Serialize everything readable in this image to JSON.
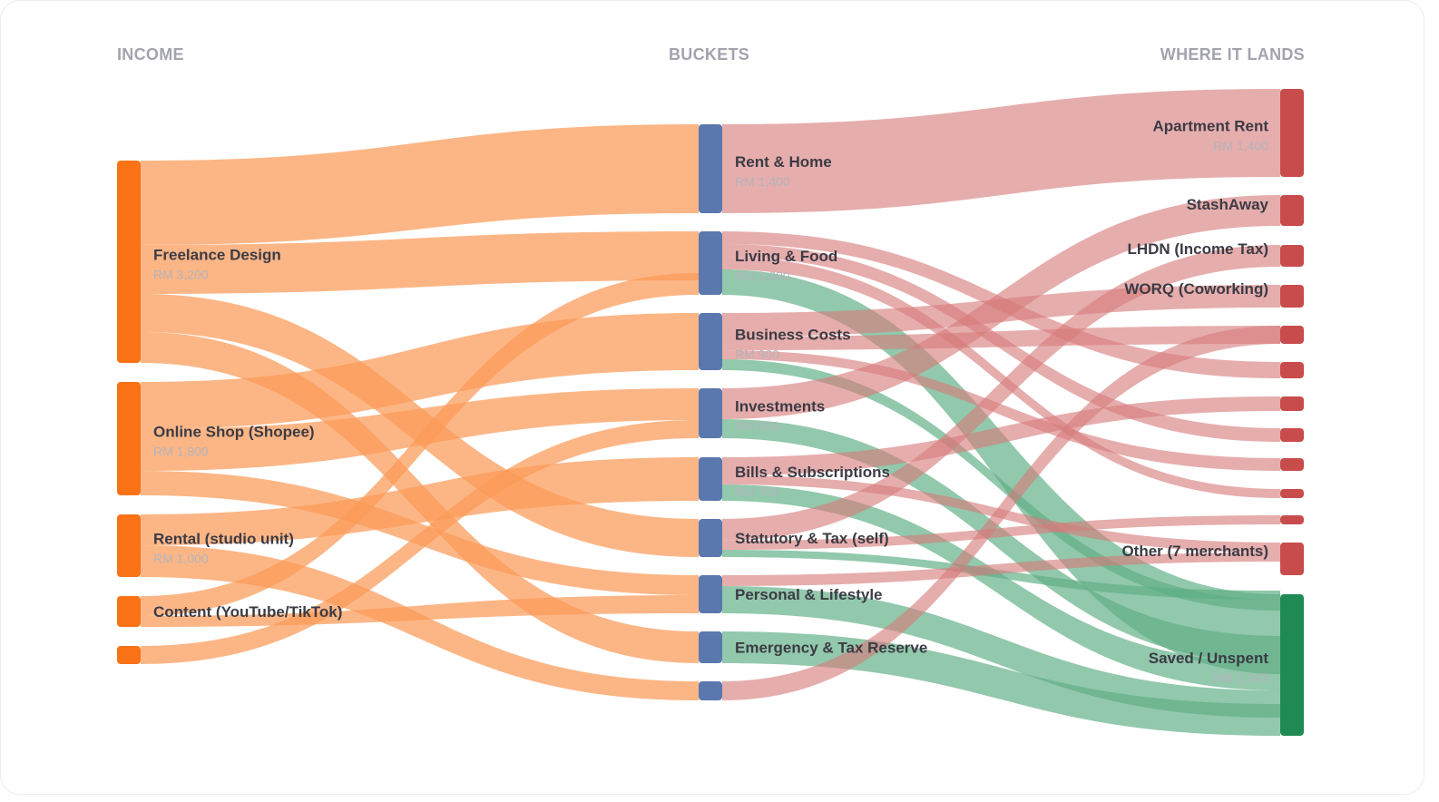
{
  "headers": {
    "income": "INCOME",
    "buckets": "BUCKETS",
    "lands": "WHERE IT LANDS"
  },
  "colors": {
    "income": "#f97316",
    "income_link": "#fb9a57",
    "bucket": "#5a78ad",
    "dest": "#c94c4c",
    "dest_link": "#d77a7b",
    "saved": "#1f8a53",
    "saved_link": "#5fae84"
  },
  "nodes": {
    "income": [
      {
        "id": "freelance",
        "label": "Freelance Design",
        "value": "RM 3,200"
      },
      {
        "id": "shop",
        "label": "Online Shop (Shopee)",
        "value": "RM 1,800"
      },
      {
        "id": "rental",
        "label": "Rental (studio unit)",
        "value": "RM 1,000"
      },
      {
        "id": "content",
        "label": "Content (YouTube/TikTok)",
        "value": ""
      },
      {
        "id": "other_income",
        "label": "",
        "value": ""
      }
    ],
    "buckets": [
      {
        "id": "rent",
        "label": "Rent & Home",
        "value": "RM 1,400"
      },
      {
        "id": "living",
        "label": "Living & Food",
        "value": "RM 1,000"
      },
      {
        "id": "business",
        "label": "Business Costs",
        "value": "RM 900"
      },
      {
        "id": "invest",
        "label": "Investments",
        "value": "RM 800"
      },
      {
        "id": "bills",
        "label": "Bills & Subscriptions",
        "value": "RM 700"
      },
      {
        "id": "statutory",
        "label": "Statutory & Tax (self)",
        "value": ""
      },
      {
        "id": "personal",
        "label": "Personal & Lifestyle",
        "value": ""
      },
      {
        "id": "emergency",
        "label": "Emergency & Tax Reserve",
        "value": ""
      },
      {
        "id": "bucket_other",
        "label": "",
        "value": ""
      }
    ],
    "destinations": [
      {
        "id": "apt",
        "label": "Apartment Rent",
        "value": "RM 1,400"
      },
      {
        "id": "stashaway",
        "label": "StashAway",
        "value": ""
      },
      {
        "id": "lhdn",
        "label": "LHDN (Income Tax)",
        "value": ""
      },
      {
        "id": "worq",
        "label": "WORQ (Coworking)",
        "value": ""
      },
      {
        "id": "d5",
        "label": "",
        "value": ""
      },
      {
        "id": "d6",
        "label": "",
        "value": ""
      },
      {
        "id": "d7",
        "label": "",
        "value": ""
      },
      {
        "id": "d8",
        "label": "",
        "value": ""
      },
      {
        "id": "d9",
        "label": "",
        "value": ""
      },
      {
        "id": "d10",
        "label": "",
        "value": ""
      },
      {
        "id": "d11",
        "label": "",
        "value": ""
      },
      {
        "id": "other_merchants",
        "label": "Other (7 merchants)",
        "value": ""
      },
      {
        "id": "saved",
        "label": "Saved / Unspent",
        "value": "RM 2,243"
      }
    ]
  }
}
